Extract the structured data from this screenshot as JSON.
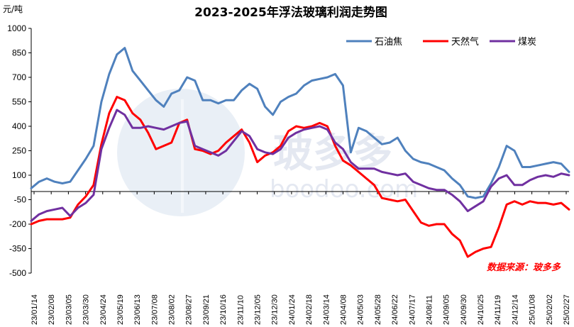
{
  "chart_data": {
    "type": "line",
    "title": "2023-2025年浮法玻璃利润走势图",
    "unit_label": "元/吨",
    "ylim": [
      -500,
      1000
    ],
    "yticks": [
      1000,
      850,
      700,
      550,
      400,
      250,
      100,
      -50,
      -200,
      -350,
      -500
    ],
    "grid": false,
    "legend_position": "top-right",
    "source_note": "数据来源：玻多多",
    "watermark": {
      "logo_text": "玻多多",
      "url_text": "boodoo.com"
    },
    "x_tick_labels": [
      "23/01/14",
      "23/02/08",
      "23/03/05",
      "23/03/30",
      "23/04/24",
      "23/05/19",
      "23/06/13",
      "23/07/08",
      "23/08/02",
      "23/08/27",
      "23/09/21",
      "23/10/16",
      "23/11/10",
      "23/12/05",
      "23/12/30",
      "24/01/24",
      "24/02/18",
      "24/03/14",
      "24/04/08",
      "24/05/03",
      "24/05/28",
      "24/06/22",
      "24/07/17",
      "24/08/11",
      "24/09/05",
      "24/09/30",
      "24/10/25",
      "24/11/19",
      "24/12/14",
      "25/01/08",
      "25/02/02",
      "25/02/27"
    ],
    "series": [
      {
        "name": "石油焦",
        "color": "#4f81bd",
        "values": [
          20,
          60,
          80,
          60,
          50,
          60,
          130,
          200,
          280,
          550,
          720,
          840,
          880,
          740,
          680,
          620,
          560,
          520,
          600,
          620,
          700,
          680,
          560,
          560,
          540,
          560,
          560,
          620,
          660,
          630,
          520,
          470,
          550,
          580,
          600,
          650,
          680,
          690,
          700,
          720,
          650,
          240,
          390,
          370,
          330,
          290,
          300,
          330,
          250,
          200,
          180,
          170,
          150,
          130,
          80,
          40,
          -30,
          -40,
          -30,
          50,
          150,
          280,
          250,
          150,
          150,
          160,
          170,
          180,
          170,
          120
        ]
      },
      {
        "name": "天然气",
        "color": "#ff0000",
        "values": [
          -200,
          -180,
          -170,
          -170,
          -170,
          -160,
          -80,
          -30,
          40,
          290,
          480,
          580,
          560,
          480,
          440,
          360,
          260,
          280,
          300,
          420,
          440,
          260,
          250,
          230,
          250,
          300,
          340,
          380,
          300,
          180,
          220,
          240,
          280,
          370,
          400,
          390,
          400,
          420,
          400,
          280,
          190,
          160,
          120,
          80,
          40,
          -40,
          -50,
          -60,
          -50,
          -120,
          -190,
          -210,
          -200,
          -200,
          -260,
          -300,
          -400,
          -370,
          -350,
          -340,
          -220,
          -80,
          -60,
          -80,
          -60,
          -70,
          -70,
          -80,
          -70,
          -110
        ]
      },
      {
        "name": "煤炭",
        "color": "#7030a0",
        "values": [
          -180,
          -140,
          -120,
          -110,
          -100,
          -150,
          -100,
          -70,
          -20,
          260,
          390,
          500,
          470,
          390,
          390,
          400,
          390,
          380,
          400,
          420,
          430,
          280,
          260,
          240,
          220,
          250,
          310,
          370,
          340,
          260,
          240,
          230,
          260,
          330,
          360,
          380,
          390,
          400,
          380,
          300,
          260,
          180,
          140,
          140,
          140,
          120,
          110,
          100,
          110,
          60,
          40,
          20,
          10,
          10,
          -20,
          -60,
          -120,
          -90,
          -60,
          30,
          80,
          100,
          40,
          40,
          70,
          90,
          100,
          90,
          110,
          100
        ]
      }
    ]
  }
}
